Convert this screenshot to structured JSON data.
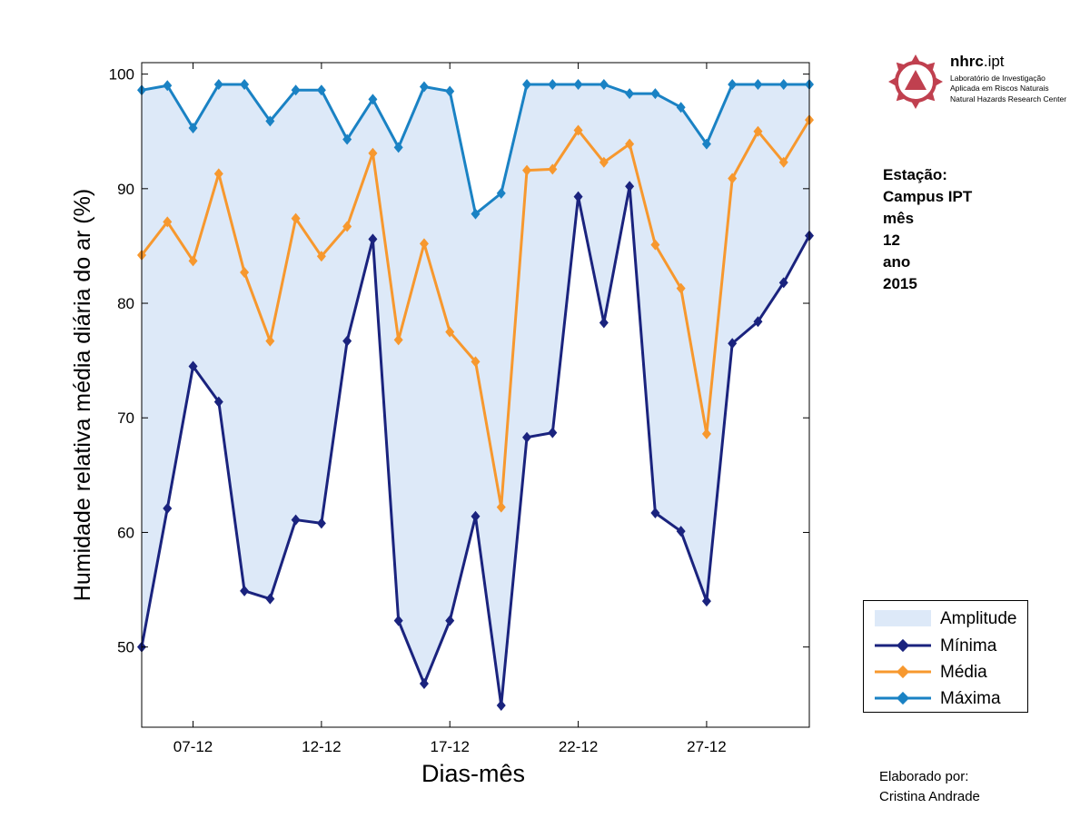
{
  "chart_data": {
    "type": "line",
    "title": "",
    "xlabel": "Dias-mês",
    "ylabel": "Humidade relativa média diária do ar (%)",
    "xtick_labels": [
      "07-12",
      "12-12",
      "17-12",
      "22-12",
      "27-12"
    ],
    "xtick_days": [
      7,
      12,
      17,
      22,
      27
    ],
    "xlim": [
      5,
      31
    ],
    "ylim": [
      43,
      101
    ],
    "yticks": [
      50,
      60,
      70,
      80,
      90,
      100
    ],
    "x": [
      5,
      6,
      7,
      8,
      9,
      10,
      11,
      12,
      13,
      14,
      15,
      16,
      17,
      18,
      19,
      20,
      21,
      22,
      23,
      24,
      25,
      26,
      27,
      28,
      29,
      30,
      31
    ],
    "series": [
      {
        "name": "Mínima",
        "color": "#1a237e",
        "values": [
          50.0,
          62.1,
          74.5,
          71.4,
          54.9,
          54.2,
          61.1,
          60.8,
          76.7,
          85.6,
          52.3,
          46.8,
          52.3,
          61.4,
          44.9,
          68.3,
          68.7,
          89.3,
          78.3,
          90.2,
          61.7,
          60.1,
          54.0,
          76.5,
          78.4,
          81.8,
          85.9
        ]
      },
      {
        "name": "Média",
        "color": "#f7982e",
        "values": [
          84.2,
          87.1,
          83.7,
          91.3,
          82.7,
          76.7,
          87.4,
          84.1,
          86.7,
          93.1,
          76.8,
          85.2,
          77.5,
          74.9,
          62.2,
          91.6,
          91.7,
          95.1,
          92.3,
          93.9,
          85.1,
          81.3,
          68.6,
          90.9,
          95.0,
          92.3,
          96.0
        ]
      },
      {
        "name": "Máxima",
        "color": "#1a82c4",
        "values": [
          98.6,
          99.0,
          95.3,
          99.1,
          99.1,
          95.9,
          98.6,
          98.6,
          94.3,
          97.8,
          93.6,
          98.9,
          98.5,
          87.8,
          89.6,
          99.1,
          99.1,
          99.1,
          99.1,
          98.3,
          98.3,
          97.1,
          93.9,
          99.1,
          99.1,
          99.1,
          99.1
        ]
      }
    ],
    "band": {
      "name": "Amplitude",
      "color": "#dde9f8",
      "lower": "Mínima",
      "upper": "Máxima"
    },
    "legend_position": "bottom-right-outside",
    "grid": false
  },
  "station": {
    "label": "Estação:",
    "name": "Campus IPT",
    "month_label": "mês",
    "month": "12",
    "year_label": "ano",
    "year": "2015"
  },
  "credits": {
    "line1": "Elaborado por:",
    "line2": "Cristina Andrade"
  },
  "logo": {
    "name_bold": "nhrc",
    "name_light": ".ipt",
    "line1": "Laboratório de Investigação",
    "line2": "Aplicada em Riscos Naturais",
    "line3": "Natural Hazards Research Center",
    "color": "#c0404f"
  }
}
